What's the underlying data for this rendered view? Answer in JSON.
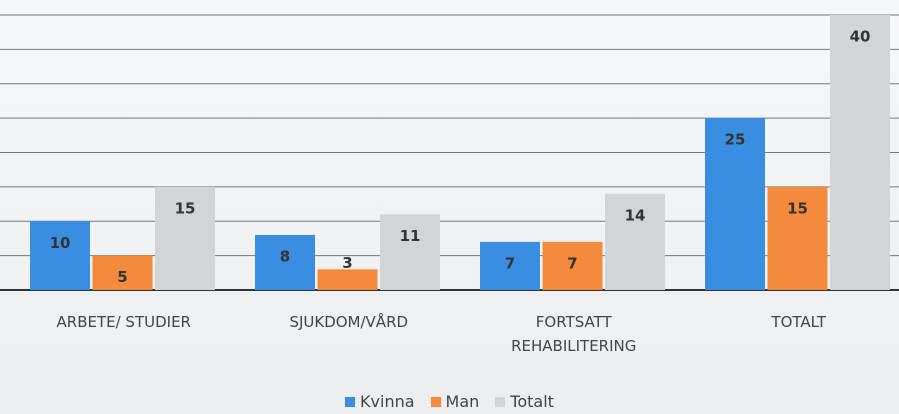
{
  "chart_data": {
    "type": "bar",
    "categories": [
      "ARBETE/ STUDIER",
      "SJUKDOM/VÅRD",
      "FORTSATT REHABILITERING",
      "TOTALT"
    ],
    "series": [
      {
        "name": "Kvinna",
        "color": "#3a8ee2",
        "values": [
          10,
          8,
          7,
          25
        ]
      },
      {
        "name": "Man",
        "color": "#f48a3c",
        "values": [
          5,
          3,
          7,
          15
        ]
      },
      {
        "name": "Totalt",
        "color": "#d3d4d6",
        "values": [
          15,
          11,
          14,
          40
        ]
      }
    ],
    "ylim": [
      0,
      40
    ],
    "yticks": [
      0,
      5,
      10,
      15,
      20,
      25,
      30,
      35,
      40
    ],
    "grid": true
  }
}
